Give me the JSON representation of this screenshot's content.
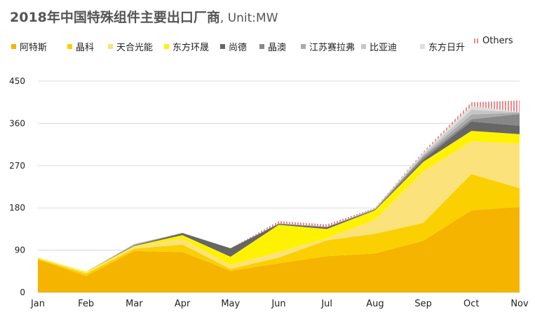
{
  "title": "2018年中国特殊组件主要出口厂商",
  "unit": ", Unit:MW",
  "chart_data": {
    "type": "area",
    "stacked": true,
    "title": "2018年中国特殊组件主要出口厂商, Unit:MW",
    "xlabel": "",
    "ylabel": "",
    "categories": [
      "Jan",
      "Feb",
      "Mar",
      "Apr",
      "May",
      "Jun",
      "Jul",
      "Aug",
      "Sep",
      "Oct",
      "Nov"
    ],
    "ylim": [
      0,
      450
    ],
    "yticks": [
      0,
      90,
      180,
      270,
      360,
      450
    ],
    "grid": true,
    "legend_position": "top",
    "series": [
      {
        "name": "阿特斯",
        "color": "#F5B400",
        "values": [
          70,
          35,
          88,
          86,
          46,
          62,
          77,
          83,
          110,
          175,
          182
        ]
      },
      {
        "name": "晶科",
        "color": "#FAD000",
        "values": [
          2,
          5,
          5,
          16,
          4,
          12,
          34,
          42,
          38,
          77,
          40
        ]
      },
      {
        "name": "天合光能",
        "color": "#FCE27A",
        "values": [
          1,
          2,
          5,
          12,
          8,
          12,
          4,
          30,
          110,
          70,
          95
        ]
      },
      {
        "name": "东方环晟",
        "color": "#FFF200",
        "values": [
          1,
          2,
          1,
          8,
          18,
          58,
          20,
          20,
          20,
          22,
          20
        ]
      },
      {
        "name": "尚德",
        "color": "#666666",
        "values": [
          0,
          0,
          1,
          4,
          18,
          2,
          4,
          1,
          5,
          20,
          18
        ]
      },
      {
        "name": "晶澳",
        "color": "#888888",
        "values": [
          0,
          0,
          1,
          1,
          0,
          0,
          0,
          1,
          5,
          5,
          25
        ]
      },
      {
        "name": "江苏赛拉弗",
        "color": "#AAAAAA",
        "values": [
          0,
          0,
          1,
          0,
          0,
          1,
          1,
          1,
          3,
          10,
          3
        ]
      },
      {
        "name": "比亚迪",
        "color": "#C6C6C6",
        "values": [
          0,
          0,
          1,
          0,
          0,
          0,
          0,
          1,
          3,
          10,
          1
        ]
      },
      {
        "name": "东方日升",
        "color": "#DEDEDE",
        "values": [
          0,
          0,
          1,
          0,
          0,
          0,
          0,
          0,
          3,
          8,
          0
        ]
      },
      {
        "name": "Others",
        "color": "#E88A8A",
        "pattern": "dotted",
        "values": [
          0,
          0,
          0,
          0,
          0,
          5,
          5,
          1,
          3,
          8,
          25
        ]
      }
    ]
  }
}
